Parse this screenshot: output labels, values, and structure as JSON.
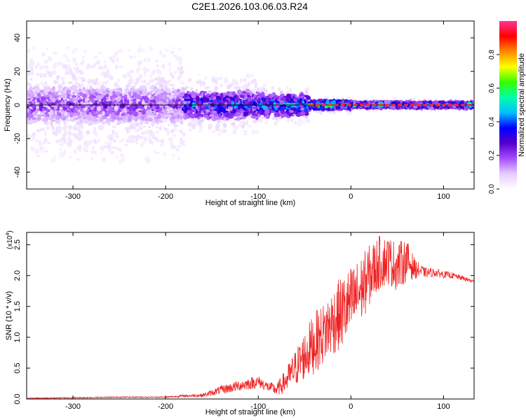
{
  "title": "C2E1.2026.103.06.03.R24",
  "colors": {
    "axis": "#000000",
    "snr_line": "#ee2222",
    "zero_line": "#111111",
    "ridge": "#ff2a2a",
    "colormap": [
      "#ffffff",
      "#e6ccff",
      "#a64dff",
      "#5500cc",
      "#0000ff",
      "#00bfff",
      "#00ffaa",
      "#33ff00",
      "#ffff00",
      "#ff8800",
      "#ff0000",
      "#ff3399"
    ]
  },
  "chart_data": [
    {
      "id": "spectrogram",
      "type": "heatmap",
      "title": "C2E1.2026.103.06.03.R24",
      "xlabel": "Height of straight line (km)",
      "ylabel": "Frequency (Hz)",
      "xlim": [
        -350,
        133
      ],
      "ylim": [
        -50,
        50
      ],
      "xticks": [
        -300,
        -200,
        -100,
        0,
        100
      ],
      "yticks": [
        -40,
        -20,
        0,
        20,
        40
      ],
      "colorbar": {
        "label": "Normalized spectral amplitude",
        "range": [
          0,
          1
        ],
        "ticks": [
          0.0,
          0.2,
          0.4,
          0.6,
          0.8
        ]
      },
      "zero_line_hz": 0,
      "ridge_segments": [
        {
          "x_start": -45,
          "x_end": 133,
          "freq_hz": 0,
          "amplitude": 1.0
        }
      ],
      "bands": [
        {
          "x_start": -350,
          "x_end": -180,
          "spread_hz": 50,
          "core_hz": 12,
          "peak": 0.28
        },
        {
          "x_start": -180,
          "x_end": -100,
          "spread_hz": 22,
          "core_hz": 9,
          "peak": 0.5
        },
        {
          "x_start": -100,
          "x_end": -45,
          "spread_hz": 14,
          "core_hz": 7,
          "peak": 0.62
        },
        {
          "x_start": -45,
          "x_end": 0,
          "spread_hz": 6,
          "core_hz": 3,
          "peak": 0.75
        },
        {
          "x_start": 0,
          "x_end": 133,
          "spread_hz": 4,
          "core_hz": 2,
          "peak": 0.6
        }
      ]
    },
    {
      "id": "snr",
      "type": "line",
      "xlabel": "Height of straight line (km)",
      "ylabel": "SNR (10 * v/v)",
      "y_multiplier": "(x10",
      "y_multiplier_exp": "4",
      "y_multiplier_close": ")",
      "xlim": [
        -350,
        133
      ],
      "ylim": [
        0,
        2.7
      ],
      "xticks": [
        -300,
        -200,
        -100,
        0,
        100
      ],
      "yticks": [
        0.0,
        0.5,
        1.0,
        1.5,
        2.0,
        2.5
      ],
      "ytick_labels": [
        "0.0",
        "0.5",
        "1.0",
        "1.5",
        "2.0",
        "2.5"
      ],
      "series": [
        {
          "name": "SNR",
          "x": [
            -350,
            -300,
            -250,
            -200,
            -180,
            -160,
            -150,
            -140,
            -130,
            -120,
            -110,
            -100,
            -90,
            -80,
            -70,
            -60,
            -50,
            -40,
            -30,
            -20,
            -10,
            0,
            10,
            20,
            30,
            40,
            50,
            60,
            70,
            80,
            90,
            100,
            110,
            120,
            133
          ],
          "y": [
            0.01,
            0.02,
            0.03,
            0.03,
            0.05,
            0.06,
            0.1,
            0.15,
            0.18,
            0.22,
            0.25,
            0.28,
            0.2,
            0.15,
            0.3,
            0.5,
            0.7,
            0.9,
            1.05,
            1.25,
            1.4,
            1.55,
            1.75,
            2.0,
            2.2,
            2.25,
            2.15,
            2.25,
            2.1,
            2.05,
            2.05,
            2.02,
            2.0,
            1.96,
            1.9
          ],
          "noise": [
            0.01,
            0.01,
            0.01,
            0.01,
            0.02,
            0.03,
            0.05,
            0.07,
            0.08,
            0.09,
            0.1,
            0.1,
            0.08,
            0.1,
            0.2,
            0.3,
            0.4,
            0.5,
            0.5,
            0.55,
            0.6,
            0.6,
            0.55,
            0.5,
            0.45,
            0.4,
            0.4,
            0.35,
            0.15,
            0.08,
            0.07,
            0.06,
            0.05,
            0.04,
            0.03
          ]
        }
      ]
    }
  ]
}
